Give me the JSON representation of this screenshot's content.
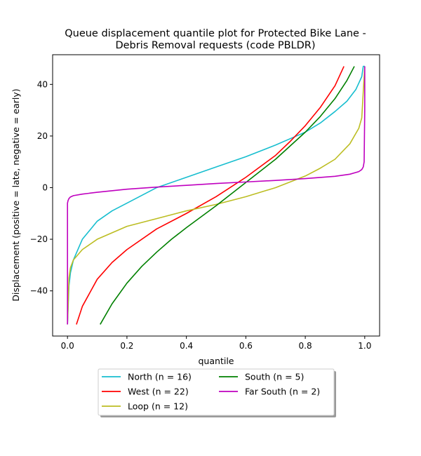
{
  "chart_data": {
    "type": "line",
    "title_lines": [
      "Queue displacement quantile plot for Protected Bike Lane -",
      "Debris Removal  requests (code PBLDR)"
    ],
    "xlabel": "quantile",
    "ylabel": "Displacement (positive = late, negative = early)",
    "xlim": [
      -0.05,
      1.05
    ],
    "ylim": [
      -57.5,
      51.5
    ],
    "x_ticks": [
      0.0,
      0.2,
      0.4,
      0.6,
      0.8,
      1.0
    ],
    "x_tick_labels": [
      "0.0",
      "0.2",
      "0.4",
      "0.6",
      "0.8",
      "1.0"
    ],
    "y_ticks": [
      -40,
      -20,
      0,
      20,
      40
    ],
    "y_tick_labels": [
      "−40",
      "−20",
      "0",
      "20",
      "40"
    ],
    "grid": false,
    "legend_position": "below plot, center, 2 columns",
    "series": [
      {
        "name": "North (n = 16)",
        "color": "#17becf",
        "x": [
          0.0,
          0.005,
          0.01,
          0.02,
          0.05,
          0.1,
          0.15,
          0.2,
          0.3,
          0.4,
          0.5,
          0.6,
          0.7,
          0.75,
          0.8,
          0.85,
          0.9,
          0.94,
          0.97,
          0.99,
          0.995,
          1.0
        ],
        "y": [
          -53,
          -38,
          -33,
          -28,
          -20,
          -13,
          -9,
          -6,
          0,
          4,
          8,
          12,
          16.5,
          19,
          21.5,
          25,
          29.5,
          33.5,
          38,
          43,
          47,
          47
        ]
      },
      {
        "name": "West (n = 22)",
        "color": "#ff0000",
        "x": [
          0.03,
          0.05,
          0.1,
          0.15,
          0.2,
          0.3,
          0.4,
          0.5,
          0.6,
          0.7,
          0.75,
          0.8,
          0.85,
          0.9,
          0.93
        ],
        "y": [
          -53,
          -46,
          -35.5,
          -29,
          -24,
          -16,
          -10,
          -3.5,
          4,
          12.5,
          18,
          24,
          31,
          39.5,
          47
        ]
      },
      {
        "name": "Loop (n = 12)",
        "color": "#bcbd22",
        "x": [
          0.0,
          0.005,
          0.01,
          0.02,
          0.05,
          0.1,
          0.2,
          0.3,
          0.4,
          0.5,
          0.6,
          0.7,
          0.8,
          0.85,
          0.9,
          0.95,
          0.98,
          0.99,
          1.0
        ],
        "y": [
          -53,
          -35,
          -31,
          -28,
          -24,
          -20,
          -15,
          -12,
          -9,
          -6.5,
          -3.5,
          0,
          4.5,
          7.5,
          11,
          17,
          23,
          27,
          47
        ]
      },
      {
        "name": "South (n = 5)",
        "color": "#008000",
        "x": [
          0.11,
          0.15,
          0.2,
          0.25,
          0.3,
          0.35,
          0.4,
          0.5,
          0.6,
          0.7,
          0.8,
          0.85,
          0.9,
          0.94,
          0.965
        ],
        "y": [
          -53,
          -45,
          -37,
          -30.5,
          -25,
          -20,
          -15.5,
          -7,
          2,
          11,
          21.5,
          27.5,
          34.5,
          41.5,
          47
        ]
      },
      {
        "name": "Far South (n = 2)",
        "color": "#bf00bf",
        "x": [
          0.0,
          0.0,
          0.002,
          0.005,
          0.01,
          0.02,
          0.05,
          0.1,
          0.2,
          0.3,
          0.4,
          0.5,
          0.6,
          0.7,
          0.8,
          0.9,
          0.95,
          0.98,
          0.99,
          0.995,
          0.998,
          1.0,
          1.0
        ],
        "y": [
          -53,
          -6,
          -5,
          -4.2,
          -3.6,
          -3.1,
          -2.5,
          -1.8,
          -0.6,
          0.2,
          0.9,
          1.6,
          2.2,
          2.8,
          3.5,
          4.4,
          5.2,
          6.2,
          7,
          8,
          10,
          30,
          47
        ]
      }
    ]
  }
}
